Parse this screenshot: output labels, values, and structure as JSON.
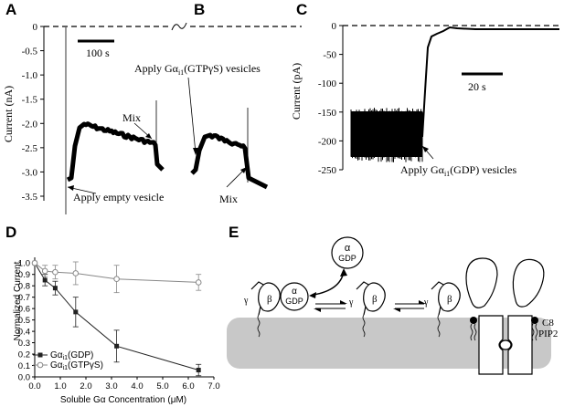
{
  "panels": {
    "A": "A",
    "B": "B",
    "C": "C",
    "D": "D",
    "E": "E"
  },
  "chart_data": [
    {
      "type": "line",
      "panel": "A",
      "ylabel": "Current (nA)",
      "ylim": [
        -3.6,
        0.1
      ],
      "yticks": [
        "0",
        "-0.5",
        "-1.0",
        "-1.5",
        "-2.0",
        "-2.5",
        "-3.0",
        "-3.5"
      ],
      "ytick_values": [
        0,
        -0.5,
        -1.0,
        -1.5,
        -2.0,
        -2.5,
        -3.0,
        -3.5
      ],
      "scalebar": "100 s",
      "annotations": {
        "apply": "Apply empty vesicle",
        "mix": "Mix"
      }
    },
    {
      "type": "line",
      "panel": "B",
      "annotations": {
        "apply": "Apply Gα",
        "apply_sub": "i1",
        "apply_rest": "(GTPγS) vesicles",
        "mix": "Mix"
      }
    },
    {
      "type": "line",
      "panel": "C",
      "ylabel": "Current (pA)",
      "ylim": [
        -250,
        5
      ],
      "yticks": [
        "0",
        "-50",
        "-100",
        "-150",
        "-200",
        "-250"
      ],
      "ytick_values": [
        0,
        -50,
        -100,
        -150,
        -200,
        -250
      ],
      "scalebar": "20 s",
      "annotations": {
        "apply": "Apply Gα",
        "apply_sub": "i1",
        "apply_rest": "(GDP) vesicles"
      }
    },
    {
      "type": "line",
      "panel": "D",
      "xlabel": "Soluble Gα Concentration (μM)",
      "ylabel": "Normalized Current",
      "xlim": [
        0,
        7.0
      ],
      "ylim": [
        0,
        1.05
      ],
      "xticks": [
        "0.0",
        "1.0",
        "2.0",
        "3.0",
        "4.0",
        "5.0",
        "6.0",
        "7.0"
      ],
      "xtick_values": [
        0,
        1,
        2,
        3,
        4,
        5,
        6,
        7
      ],
      "yticks": [
        "0.0",
        "0.1",
        "0.2",
        "0.3",
        "0.4",
        "0.5",
        "0.6",
        "0.7",
        "0.8",
        "0.9",
        "1.0"
      ],
      "ytick_values": [
        0,
        0.1,
        0.2,
        0.3,
        0.4,
        0.5,
        0.6,
        0.7,
        0.8,
        0.9,
        1.0
      ],
      "legend_position": "bottom-left",
      "series": [
        {
          "name": "Gα",
          "name_sub": "i1",
          "name_rest": "(GDP)",
          "marker": "square",
          "color": "#222222",
          "x": [
            0,
            0.4,
            0.8,
            1.6,
            3.2,
            6.4
          ],
          "y": [
            1.0,
            0.85,
            0.78,
            0.57,
            0.27,
            0.06
          ],
          "err": [
            0,
            0.05,
            0.06,
            0.13,
            0.14,
            0.05
          ]
        },
        {
          "name": "Gα",
          "name_sub": "i1",
          "name_rest": "(GTPγS)",
          "marker": "circle",
          "color": "#888888",
          "x": [
            0,
            0.4,
            0.8,
            1.6,
            3.2,
            6.4
          ],
          "y": [
            1.0,
            0.93,
            0.92,
            0.91,
            0.86,
            0.83
          ],
          "err": [
            0,
            0.05,
            0.06,
            0.1,
            0.12,
            0.07
          ]
        }
      ]
    }
  ],
  "diagram_E": {
    "labels": {
      "alpha": "α",
      "gdp": "GDP",
      "beta": "β",
      "gamma": "γ",
      "c8": "C8",
      "pip2": "PIP2"
    }
  },
  "colors": {
    "membrane": "#c8c8c8",
    "trace": "#000000",
    "gtps_series": "#888888"
  }
}
